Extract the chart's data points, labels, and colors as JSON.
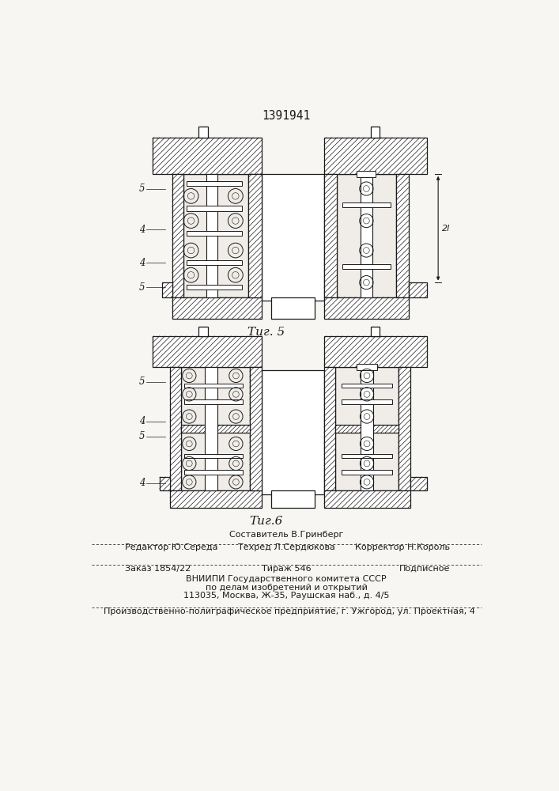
{
  "patent_number": "1391941",
  "fig5_label": "Τиг. 5",
  "fig6_label": "Τиг.6",
  "bg_color": "#f8f6f2",
  "line_color": "#1a1a1a",
  "editor_line": "Редактор Ю.Середа",
  "composer_line1": "Составитель В.Гринберг",
  "composer_line2": "Техред Л.Сердюкова",
  "corrector_line": "Корректор Н.Король",
  "order_line": "Заказ 1854/22",
  "tirage_line": "Тираж 546",
  "podpisnoe_line": "Подписное",
  "vnipi_line1": "ВНИИПИ Государственного комитета СССР",
  "vnipi_line2": "по делам изобретений и открытий",
  "vnipi_line3": "113035, Москва, Ж-35, Раушская наб., д. 4/5",
  "producer_line": "Производственно-полиграфическое предприятие, г. Ужгород, ул. Проектная, 4"
}
